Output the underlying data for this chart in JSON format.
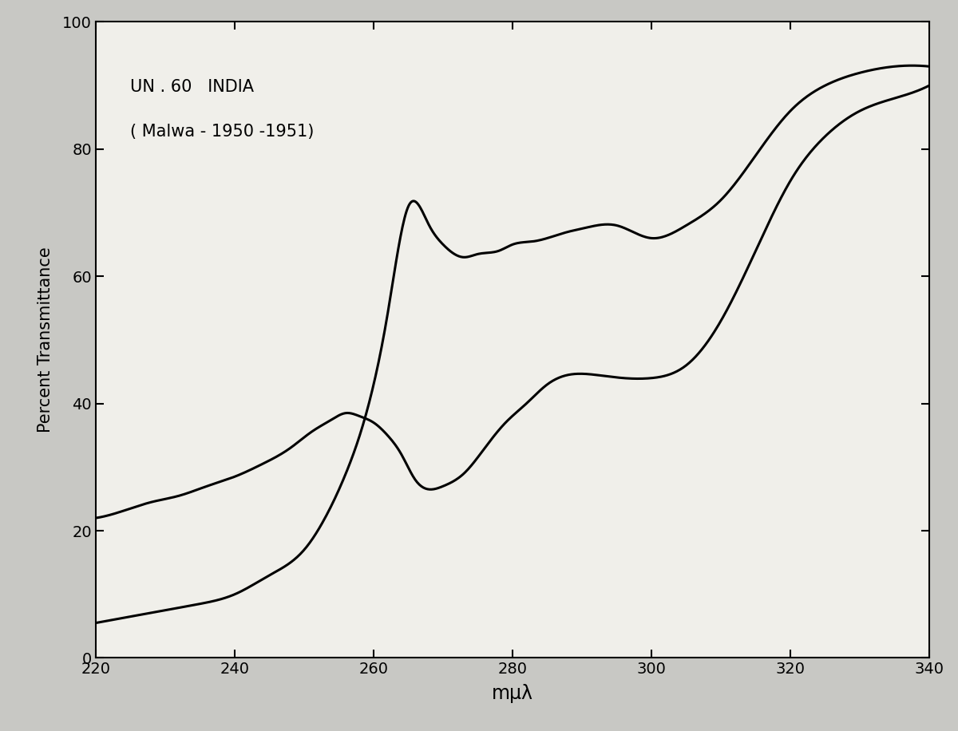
{
  "annotation_line1": "UN . 60   INDIA",
  "annotation_line2": "( Malwa - 1950 -1951)",
  "xlabel": "mμλ",
  "ylabel": "Percent Transmittance",
  "xlim": [
    220,
    340
  ],
  "ylim": [
    0,
    100
  ],
  "xticks": [
    220,
    240,
    260,
    280,
    300,
    320,
    340
  ],
  "yticks": [
    0,
    20,
    40,
    60,
    80,
    100
  ],
  "fig_color": "#c8c8c4",
  "plot_bg_color": "#f0efea",
  "line_color": "#000000",
  "line_width": 2.2,
  "curve_upper_x": [
    220,
    225,
    230,
    235,
    240,
    245,
    250,
    253,
    256,
    258,
    260,
    262,
    265,
    268,
    270,
    273,
    275,
    278,
    280,
    283,
    285,
    288,
    290,
    295,
    300,
    305,
    310,
    315,
    320,
    325,
    330,
    335,
    340
  ],
  "curve_upper_y": [
    5.5,
    6.5,
    7.5,
    8.5,
    10,
    13,
    17,
    22,
    29,
    35,
    43,
    54,
    71,
    68,
    65,
    63,
    63.5,
    64,
    65,
    65.5,
    66,
    67,
    67.5,
    68,
    66,
    68,
    72,
    79,
    86,
    90,
    92,
    93,
    93
  ],
  "curve_lower_x": [
    220,
    225,
    228,
    232,
    236,
    240,
    244,
    248,
    251,
    254,
    256,
    258,
    260,
    262,
    264,
    266,
    268,
    270,
    273,
    276,
    279,
    282,
    285,
    288,
    292,
    296,
    300,
    305,
    310,
    315,
    320,
    325,
    330,
    335,
    340
  ],
  "curve_lower_y": [
    22,
    23.5,
    24.5,
    25.5,
    27,
    28.5,
    30.5,
    33,
    35.5,
    37.5,
    38.5,
    38,
    37,
    35,
    32,
    28,
    26.5,
    27,
    29,
    33,
    37,
    40,
    43,
    44.5,
    44.5,
    44,
    44,
    46,
    53,
    64,
    75,
    82,
    86,
    88,
    90
  ]
}
